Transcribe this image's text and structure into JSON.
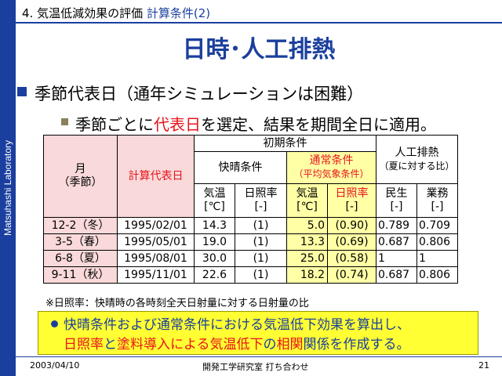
{
  "sidebar": {
    "label": "Matsuhashi Laboratory"
  },
  "header": {
    "number": "4.",
    "section": "気温低減効果の評価",
    "subsection": "計算条件(2)"
  },
  "title": "日時･人工排熱",
  "bullet1": "季節代表日（通年シミュレーションは困難）",
  "bullet2": {
    "p1": "季節ごとに",
    "red": "代表日",
    "p2": "を選定、結果を期間全日に適用。"
  },
  "table": {
    "h_month": "月",
    "h_season": "（季節）",
    "h_calc": "計算代表日",
    "h_initial": "初期条件",
    "h_clear": "快晴条件",
    "h_normal": "通常条件",
    "h_normal_sub": "（平均気象条件）",
    "h_heat": "人工排熱",
    "h_heat_sub": "（夏に対する比）",
    "h_temp": "気温",
    "h_temp_unit": "[℃]",
    "h_sun": "日照率",
    "h_sun_unit": "[-]",
    "h_temp2": "気温",
    "h_temp2_unit": "[℃]",
    "h_sun2": "日照率",
    "h_sun2_unit": "[-]",
    "h_res": "民生",
    "h_res_unit": "[-]",
    "h_bus": "業務",
    "h_bus_unit": "[-]",
    "rows": [
      {
        "month": "12-2（冬）",
        "date": "1995/02/01",
        "ct": "14.3",
        "cs": "(1)",
        "nt": "5.0",
        "ns": "(0.90)",
        "res": "0.789",
        "bus": "0.709"
      },
      {
        "month": "3-5（春）",
        "date": "1995/05/01",
        "ct": "19.0",
        "cs": "(1)",
        "nt": "13.3",
        "ns": "(0.69)",
        "res": "0.687",
        "bus": "0.806"
      },
      {
        "month": "6-8（夏）",
        "date": "1995/08/01",
        "ct": "30.0",
        "cs": "(1)",
        "nt": "25.0",
        "ns": "(0.58)",
        "res": "1",
        "bus": "1"
      },
      {
        "month": "9-11（秋）",
        "date": "1995/11/01",
        "ct": "22.6",
        "cs": "(1)",
        "nt": "18.2",
        "ns": "(0.74)",
        "res": "0.687",
        "bus": "0.806"
      }
    ]
  },
  "note": "※日照率：快晴時の各時刻全天日射量に対する日射量の比",
  "box": {
    "l1": "快晴条件および通常条件における気温低下効果を算出し、",
    "l2_a": "日照率",
    "l2_b": "と",
    "l2_c": "塗料導入による気温低下",
    "l2_d": "の",
    "l2_e": "相関",
    "l2_f": "関係を作成する。"
  },
  "footer": {
    "date": "2003/04/10",
    "center": "開発工学研究室 打ち合わせ",
    "page": "21"
  }
}
